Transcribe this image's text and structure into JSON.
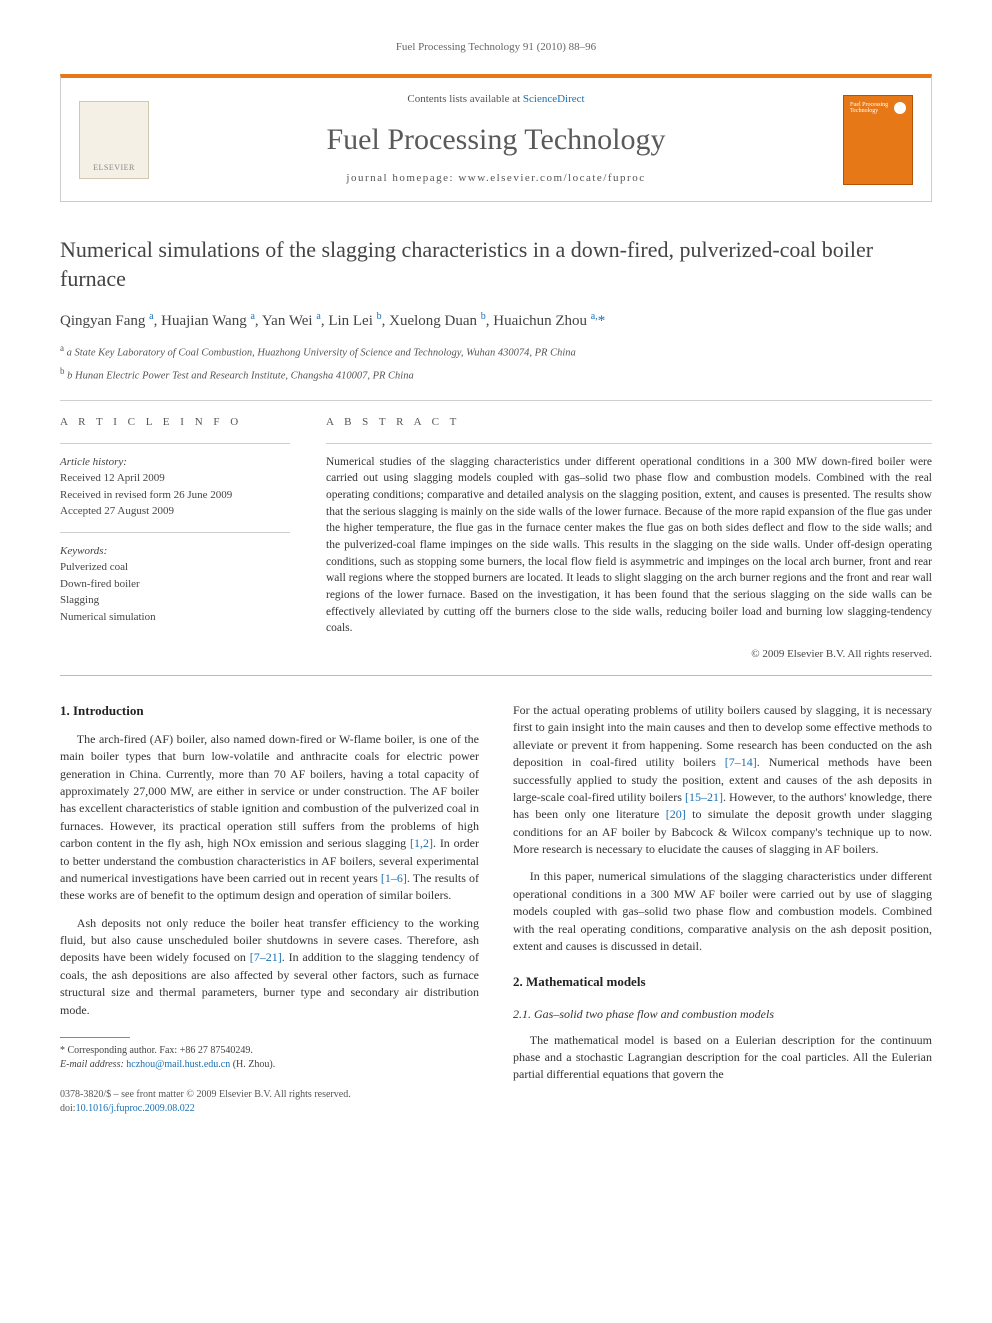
{
  "running_head": "Fuel Processing Technology 91 (2010) 88–96",
  "header": {
    "publisher_logo_text": "ELSEVIER",
    "contents_prefix": "Contents lists available at ",
    "contents_link": "ScienceDirect",
    "journal_title": "Fuel Processing Technology",
    "homepage_prefix": "journal homepage: ",
    "homepage_url": "www.elsevier.com/locate/fuproc",
    "cover_label": "Fuel Processing Technology",
    "colors": {
      "accent": "#e67817",
      "link": "#1a6fb3",
      "rule": "#cccccc",
      "text": "#333333",
      "muted": "#666666"
    }
  },
  "article": {
    "title": "Numerical simulations of the slagging characteristics in a down-fired, pulverized-coal boiler furnace",
    "authors_html": "Qingyan Fang <sup>a</sup>, Huajian Wang <sup>a</sup>, Yan Wei <sup>a</sup>, Lin Lei <sup>b</sup>, Xuelong Duan <sup>b</sup>, Huaichun Zhou <sup>a,</sup><span class='corr'>*</span>",
    "affiliations": [
      "a  State Key Laboratory of Coal Combustion, Huazhong University of Science and Technology, Wuhan 430074, PR China",
      "b  Hunan Electric Power Test and Research Institute, Changsha 410007, PR China"
    ]
  },
  "info": {
    "heading": "A R T I C L E   I N F O",
    "history_head": "Article history:",
    "received": "Received 12 April 2009",
    "revised": "Received in revised form 26 June 2009",
    "accepted": "Accepted 27 August 2009",
    "keywords_head": "Keywords:",
    "keywords": [
      "Pulverized coal",
      "Down-fired boiler",
      "Slagging",
      "Numerical simulation"
    ]
  },
  "abstract": {
    "heading": "A B S T R A C T",
    "text": "Numerical studies of the slagging characteristics under different operational conditions in a 300 MW down-fired boiler were carried out using slagging models coupled with gas–solid two phase flow and combustion models. Combined with the real operating conditions; comparative and detailed analysis on the slagging position, extent, and causes is presented. The results show that the serious slagging is mainly on the side walls of the lower furnace. Because of the more rapid expansion of the flue gas under the higher temperature, the flue gas in the furnace center makes the flue gas on both sides deflect and flow to the side walls; and the pulverized-coal flame impinges on the side walls. This results in the slagging on the side walls. Under off-design operating conditions, such as stopping some burners, the local flow field is asymmetric and impinges on the local arch burner, front and rear wall regions where the stopped burners are located. It leads to slight slagging on the arch burner regions and the front and rear wall regions of the lower furnace. Based on the investigation, it has been found that the serious slagging on the side walls can be effectively alleviated by cutting off the burners close to the side walls, reducing boiler load and burning low slagging-tendency coals.",
    "copyright": "© 2009 Elsevier B.V. All rights reserved."
  },
  "body": {
    "s1_head": "1. Introduction",
    "s1_p1": "The arch-fired (AF) boiler, also named down-fired or W-flame boiler, is one of the main boiler types that burn low-volatile and anthracite coals for electric power generation in China. Currently, more than 70 AF boilers, having a total capacity of approximately 27,000 MW, are either in service or under construction. The AF boiler has excellent characteristics of stable ignition and combustion of the pulverized coal in furnaces. However, its practical operation still suffers from the problems of high carbon content in the fly ash, high NOx emission and serious slagging [1,2]. In order to better understand the combustion characteristics in AF boilers, several experimental and numerical investigations have been carried out in recent years [1–6]. The results of these works are of benefit to the optimum design and operation of similar boilers.",
    "s1_p2": "Ash deposits not only reduce the boiler heat transfer efficiency to the working fluid, but also cause unscheduled boiler shutdowns in severe cases. Therefore, ash deposits have been widely focused on [7–21]. In addition to the slagging tendency of coals, the ash depositions are also affected by several other factors, such as furnace structural size and thermal parameters, burner type and secondary air distribution mode.",
    "s1_p3": "For the actual operating problems of utility boilers caused by slagging, it is necessary first to gain insight into the main causes and then to develop some effective methods to alleviate or prevent it from happening. Some research has been conducted on the ash deposition in coal-fired utility boilers [7–14]. Numerical methods have been successfully applied to study the position, extent and causes of the ash deposits in large-scale coal-fired utility boilers [15–21]. However, to the authors' knowledge, there has been only one literature [20] to simulate the deposit growth under slagging conditions for an AF boiler by Babcock & Wilcox company's technique up to now. More research is necessary to elucidate the causes of slagging in AF boilers.",
    "s1_p4": "In this paper, numerical simulations of the slagging characteristics under different operational conditions in a 300 MW AF boiler were carried out by use of slagging models coupled with gas–solid two phase flow and combustion models. Combined with the real operating conditions, comparative analysis on the ash deposit position, extent and causes is discussed in detail.",
    "s2_head": "2. Mathematical models",
    "s21_head": "2.1. Gas–solid two phase flow and combustion models",
    "s21_p1": "The mathematical model is based on a Eulerian description for the continuum phase and a stochastic Lagrangian description for the coal particles. All the Eulerian partial differential equations that govern the"
  },
  "footnotes": {
    "corr_label": "* Corresponding author. Fax: +86 27 87540249.",
    "email_label": "E-mail address: ",
    "email": "hczhou@mail.hust.edu.cn",
    "email_suffix": " (H. Zhou)."
  },
  "bottom": {
    "issn_line": "0378-3820/$ – see front matter © 2009 Elsevier B.V. All rights reserved.",
    "doi_prefix": "doi:",
    "doi": "10.1016/j.fuproc.2009.08.022"
  }
}
